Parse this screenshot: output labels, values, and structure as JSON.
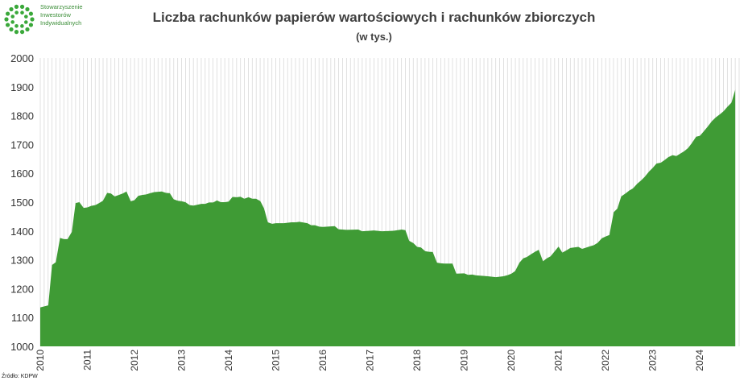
{
  "logo": {
    "lines": [
      "Stowarzyszenie",
      "Inwestorów",
      "Indywidualnych"
    ],
    "color": "#3aa83a"
  },
  "title": "Liczba rachunków papierów wartościowych i rachunków zbiorczych",
  "subtitle": "(w tys.)",
  "source": "Źródło: KDPW",
  "chart_data": {
    "type": "area",
    "title": "Liczba rachunków papierów wartościowych i rachunków zbiorczych",
    "subtitle": "(w tys.)",
    "xlabel": "",
    "ylabel": "",
    "ylim": [
      1000,
      2000
    ],
    "yticks": [
      1000,
      1100,
      1200,
      1300,
      1400,
      1500,
      1600,
      1700,
      1800,
      1900,
      2000
    ],
    "xlim": [
      2010.0,
      2024.8333
    ],
    "xtick_labels": [
      "2010",
      "2011",
      "2012",
      "2013",
      "2014",
      "2015",
      "2016",
      "2017",
      "2018",
      "2019",
      "2020",
      "2021",
      "2022",
      "2023",
      "2024"
    ],
    "grid": "vertical monthly",
    "fill_color": "#3f9b35",
    "points": [
      [
        2010.0,
        1135
      ],
      [
        2010.17,
        1142
      ],
      [
        2010.25,
        1282
      ],
      [
        2010.33,
        1292
      ],
      [
        2010.42,
        1376
      ],
      [
        2010.5,
        1372
      ],
      [
        2010.58,
        1372
      ],
      [
        2010.67,
        1397
      ],
      [
        2010.75,
        1497
      ],
      [
        2010.83,
        1500
      ],
      [
        2010.92,
        1480
      ],
      [
        2011.0,
        1482
      ],
      [
        2011.08,
        1487
      ],
      [
        2011.17,
        1490
      ],
      [
        2011.25,
        1497
      ],
      [
        2011.33,
        1505
      ],
      [
        2011.42,
        1532
      ],
      [
        2011.5,
        1530
      ],
      [
        2011.58,
        1520
      ],
      [
        2011.67,
        1525
      ],
      [
        2011.75,
        1530
      ],
      [
        2011.83,
        1537
      ],
      [
        2011.92,
        1503
      ],
      [
        2012.0,
        1507
      ],
      [
        2012.08,
        1522
      ],
      [
        2012.17,
        1525
      ],
      [
        2012.25,
        1527
      ],
      [
        2012.33,
        1531
      ],
      [
        2012.42,
        1535
      ],
      [
        2012.5,
        1536
      ],
      [
        2012.58,
        1537
      ],
      [
        2012.67,
        1532
      ],
      [
        2012.75,
        1531
      ],
      [
        2012.83,
        1510
      ],
      [
        2012.92,
        1505
      ],
      [
        2013.0,
        1503
      ],
      [
        2013.08,
        1500
      ],
      [
        2013.17,
        1490
      ],
      [
        2013.25,
        1488
      ],
      [
        2013.33,
        1491
      ],
      [
        2013.42,
        1494
      ],
      [
        2013.5,
        1494
      ],
      [
        2013.58,
        1499
      ],
      [
        2013.67,
        1499
      ],
      [
        2013.75,
        1506
      ],
      [
        2013.83,
        1500
      ],
      [
        2013.92,
        1500
      ],
      [
        2014.0,
        1502
      ],
      [
        2014.08,
        1518
      ],
      [
        2014.17,
        1517
      ],
      [
        2014.25,
        1519
      ],
      [
        2014.33,
        1512
      ],
      [
        2014.42,
        1517
      ],
      [
        2014.5,
        1512
      ],
      [
        2014.58,
        1512
      ],
      [
        2014.67,
        1504
      ],
      [
        2014.75,
        1478
      ],
      [
        2014.83,
        1430
      ],
      [
        2014.92,
        1425
      ],
      [
        2015.0,
        1427
      ],
      [
        2015.17,
        1427
      ],
      [
        2015.33,
        1430
      ],
      [
        2015.42,
        1430
      ],
      [
        2015.5,
        1432
      ],
      [
        2015.67,
        1427
      ],
      [
        2015.75,
        1420
      ],
      [
        2015.83,
        1420
      ],
      [
        2015.92,
        1415
      ],
      [
        2016.0,
        1414
      ],
      [
        2016.25,
        1417
      ],
      [
        2016.33,
        1406
      ],
      [
        2016.5,
        1404
      ],
      [
        2016.75,
        1405
      ],
      [
        2016.83,
        1399
      ],
      [
        2017.0,
        1401
      ],
      [
        2017.08,
        1402
      ],
      [
        2017.25,
        1399
      ],
      [
        2017.42,
        1400
      ],
      [
        2017.5,
        1401
      ],
      [
        2017.67,
        1405
      ],
      [
        2017.75,
        1403
      ],
      [
        2017.83,
        1366
      ],
      [
        2017.92,
        1358
      ],
      [
        2018.0,
        1345
      ],
      [
        2018.08,
        1343
      ],
      [
        2018.17,
        1330
      ],
      [
        2018.25,
        1328
      ],
      [
        2018.33,
        1327
      ],
      [
        2018.42,
        1290
      ],
      [
        2018.5,
        1288
      ],
      [
        2018.58,
        1287
      ],
      [
        2018.75,
        1287
      ],
      [
        2018.83,
        1252
      ],
      [
        2019.0,
        1253
      ],
      [
        2019.08,
        1248
      ],
      [
        2019.17,
        1249
      ],
      [
        2019.25,
        1246
      ],
      [
        2019.42,
        1244
      ],
      [
        2019.5,
        1243
      ],
      [
        2019.67,
        1240
      ],
      [
        2019.83,
        1243
      ],
      [
        2019.92,
        1247
      ],
      [
        2020.0,
        1252
      ],
      [
        2020.08,
        1261
      ],
      [
        2020.17,
        1290
      ],
      [
        2020.25,
        1305
      ],
      [
        2020.33,
        1310
      ],
      [
        2020.42,
        1320
      ],
      [
        2020.5,
        1328
      ],
      [
        2020.58,
        1335
      ],
      [
        2020.67,
        1295
      ],
      [
        2020.75,
        1305
      ],
      [
        2020.83,
        1312
      ],
      [
        2020.92,
        1330
      ],
      [
        2021.0,
        1346
      ],
      [
        2021.08,
        1325
      ],
      [
        2021.17,
        1333
      ],
      [
        2021.25,
        1341
      ],
      [
        2021.42,
        1345
      ],
      [
        2021.5,
        1338
      ],
      [
        2021.58,
        1342
      ],
      [
        2021.67,
        1347
      ],
      [
        2021.75,
        1351
      ],
      [
        2021.83,
        1359
      ],
      [
        2021.92,
        1375
      ],
      [
        2022.0,
        1381
      ],
      [
        2022.08,
        1386
      ],
      [
        2022.17,
        1465
      ],
      [
        2022.25,
        1478
      ],
      [
        2022.33,
        1520
      ],
      [
        2022.42,
        1530
      ],
      [
        2022.5,
        1540
      ],
      [
        2022.58,
        1548
      ],
      [
        2022.67,
        1564
      ],
      [
        2022.75,
        1575
      ],
      [
        2022.83,
        1588
      ],
      [
        2022.92,
        1606
      ],
      [
        2023.0,
        1619
      ],
      [
        2023.08,
        1634
      ],
      [
        2023.17,
        1637
      ],
      [
        2023.25,
        1646
      ],
      [
        2023.33,
        1656
      ],
      [
        2023.42,
        1663
      ],
      [
        2023.5,
        1660
      ],
      [
        2023.58,
        1668
      ],
      [
        2023.67,
        1677
      ],
      [
        2023.75,
        1688
      ],
      [
        2023.83,
        1705
      ],
      [
        2023.92,
        1727
      ],
      [
        2024.0,
        1730
      ],
      [
        2024.08,
        1745
      ],
      [
        2024.17,
        1763
      ],
      [
        2024.25,
        1780
      ],
      [
        2024.33,
        1793
      ],
      [
        2024.42,
        1804
      ],
      [
        2024.5,
        1815
      ],
      [
        2024.58,
        1830
      ],
      [
        2024.67,
        1845
      ],
      [
        2024.75,
        1890
      ]
    ]
  }
}
